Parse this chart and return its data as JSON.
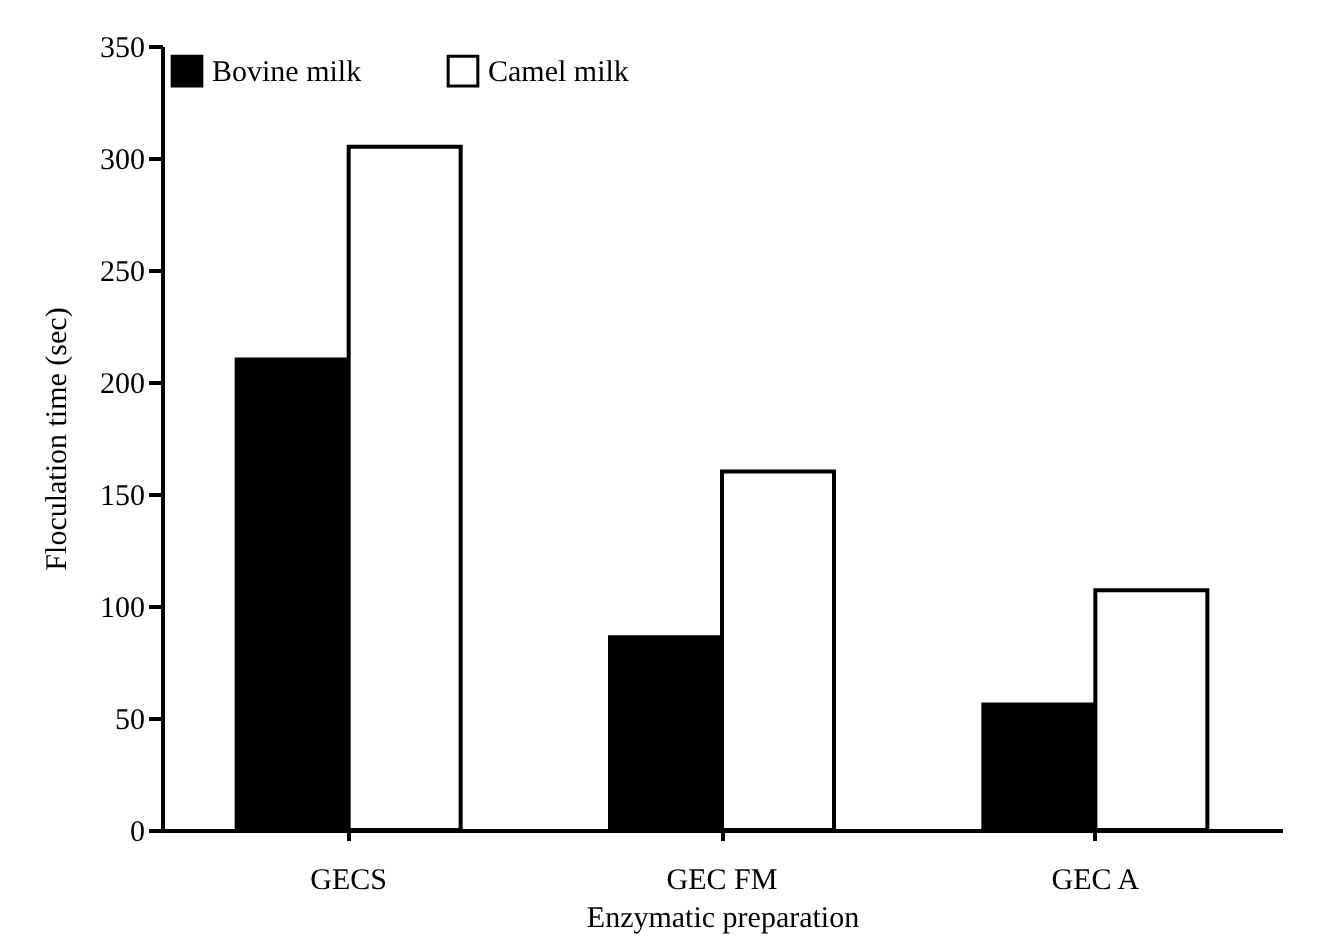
{
  "chart_data": {
    "type": "bar",
    "xlabel": "Enzymatic preparation",
    "ylabel": "Floculation time (sec)",
    "categories": [
      "GECS",
      "GEC FM",
      "GEC A"
    ],
    "series": [
      {
        "name": "Bovine milk",
        "color": "#000000",
        "values": [
          210,
          86,
          56
        ]
      },
      {
        "name": "Camel milk",
        "color": "#ffffff",
        "values": [
          305,
          160,
          107
        ]
      }
    ],
    "ylim": [
      0,
      350
    ],
    "yticks": [
      0,
      50,
      100,
      150,
      200,
      250,
      300,
      350
    ],
    "grid": false,
    "legend": "top left"
  }
}
